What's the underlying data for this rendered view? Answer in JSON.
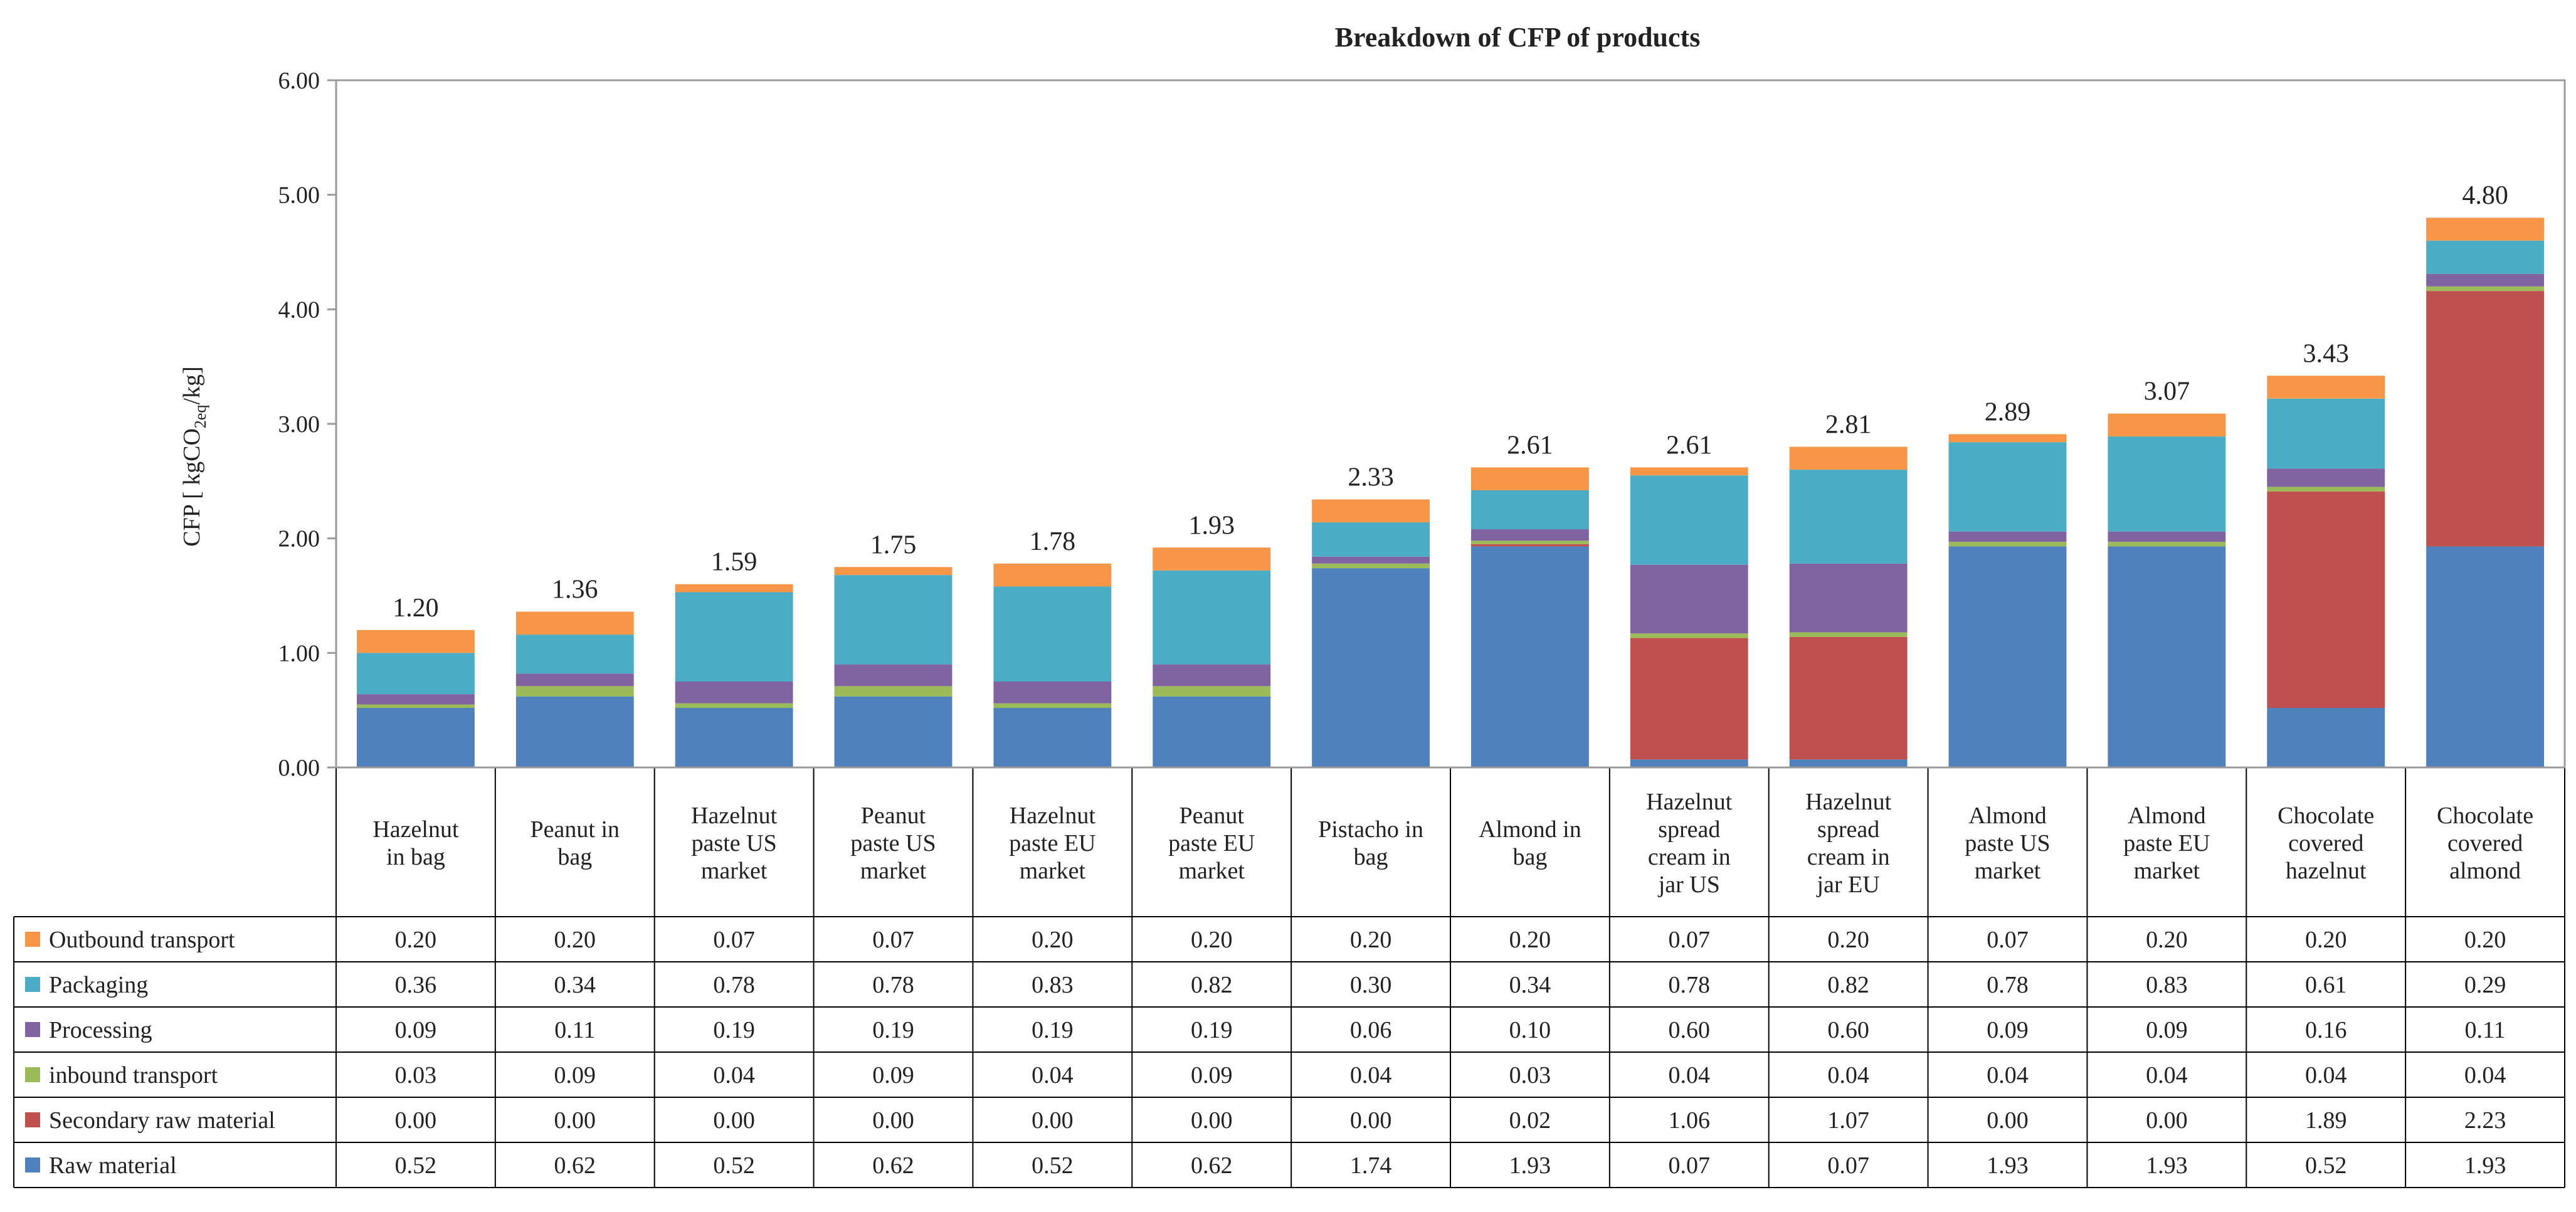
{
  "chart_data": {
    "type": "stacked-bar",
    "title": "Breakdown of CFP of products",
    "ylabel_main": "CFP [ kgCO",
    "ylabel_sub": "2eq",
    "ylabel_end": "/kg]",
    "ylim": [
      0,
      6
    ],
    "yticks": [
      "0.00",
      "1.00",
      "2.00",
      "3.00",
      "4.00",
      "5.00",
      "6.00"
    ],
    "categories": [
      [
        "Hazelnut",
        "in bag"
      ],
      [
        "Peanut in",
        "bag"
      ],
      [
        "Hazelnut",
        "paste US",
        "market"
      ],
      [
        "Peanut",
        "paste US",
        "market"
      ],
      [
        "Hazelnut",
        "paste EU",
        "market"
      ],
      [
        "Peanut",
        "paste EU",
        "market"
      ],
      [
        "Pistacho in",
        "bag"
      ],
      [
        "Almond in",
        "bag"
      ],
      [
        "Hazelnut",
        "spread",
        "cream in",
        "jar US"
      ],
      [
        "Hazelnut",
        "spread",
        "cream in",
        "jar EU"
      ],
      [
        "Almond",
        "paste US",
        "market"
      ],
      [
        "Almond",
        "paste EU",
        "market"
      ],
      [
        "Chocolate",
        "covered",
        "hazelnut"
      ],
      [
        "Chocolate",
        "covered",
        "almond"
      ]
    ],
    "totals": [
      "1.20",
      "1.36",
      "1.59",
      "1.75",
      "1.78",
      "1.93",
      "2.33",
      "2.61",
      "2.61",
      "2.81",
      "2.89",
      "3.07",
      "3.43",
      "4.80"
    ],
    "series": [
      {
        "name": "Raw material",
        "color": "#4f81bd",
        "values": [
          0.52,
          0.62,
          0.52,
          0.62,
          0.52,
          0.62,
          1.74,
          1.93,
          0.07,
          0.07,
          1.93,
          1.93,
          0.52,
          1.93
        ],
        "labels": [
          "0.52",
          "0.62",
          "0.52",
          "0.62",
          "0.52",
          "0.62",
          "1.74",
          "1.93",
          "0.07",
          "0.07",
          "1.93",
          "1.93",
          "0.52",
          "1.93"
        ]
      },
      {
        "name": "Secondary raw material",
        "color": "#c0504d",
        "values": [
          0.0,
          0.0,
          0.0,
          0.0,
          0.0,
          0.0,
          0.0,
          0.02,
          1.06,
          1.07,
          0.0,
          0.0,
          1.89,
          2.23
        ],
        "labels": [
          "0.00",
          "0.00",
          "0.00",
          "0.00",
          "0.00",
          "0.00",
          "0.00",
          "0.02",
          "1.06",
          "1.07",
          "0.00",
          "0.00",
          "1.89",
          "2.23"
        ]
      },
      {
        "name": "inbound transport",
        "color": "#9bbb59",
        "values": [
          0.03,
          0.09,
          0.04,
          0.09,
          0.04,
          0.09,
          0.04,
          0.03,
          0.04,
          0.04,
          0.04,
          0.04,
          0.04,
          0.04
        ],
        "labels": [
          "0.03",
          "0.09",
          "0.04",
          "0.09",
          "0.04",
          "0.09",
          "0.04",
          "0.03",
          "0.04",
          "0.04",
          "0.04",
          "0.04",
          "0.04",
          "0.04"
        ]
      },
      {
        "name": "Processing",
        "color": "#8064a2",
        "values": [
          0.09,
          0.11,
          0.19,
          0.19,
          0.19,
          0.19,
          0.06,
          0.1,
          0.6,
          0.6,
          0.09,
          0.09,
          0.16,
          0.11
        ],
        "labels": [
          "0.09",
          "0.11",
          "0.19",
          "0.19",
          "0.19",
          "0.19",
          "0.06",
          "0.10",
          "0.60",
          "0.60",
          "0.09",
          "0.09",
          "0.16",
          "0.11"
        ]
      },
      {
        "name": "Packaging",
        "color": "#4bacc6",
        "values": [
          0.36,
          0.34,
          0.78,
          0.78,
          0.83,
          0.82,
          0.3,
          0.34,
          0.78,
          0.82,
          0.78,
          0.83,
          0.61,
          0.29
        ],
        "labels": [
          "0.36",
          "0.34",
          "0.78",
          "0.78",
          "0.83",
          "0.82",
          "0.30",
          "0.34",
          "0.78",
          "0.82",
          "0.78",
          "0.83",
          "0.61",
          "0.29"
        ]
      },
      {
        "name": "Outbound transport",
        "color": "#f79646",
        "values": [
          0.2,
          0.2,
          0.07,
          0.07,
          0.2,
          0.2,
          0.2,
          0.2,
          0.07,
          0.2,
          0.07,
          0.2,
          0.2,
          0.2
        ],
        "labels": [
          "0.20",
          "0.20",
          "0.07",
          "0.07",
          "0.20",
          "0.20",
          "0.20",
          "0.20",
          "0.07",
          "0.20",
          "0.07",
          "0.20",
          "0.20",
          "0.20"
        ]
      }
    ],
    "table_row_order": [
      "Outbound transport",
      "Packaging",
      "Processing",
      "inbound transport",
      "Secondary raw material",
      "Raw material"
    ],
    "legend_placement": "data-table-left"
  }
}
